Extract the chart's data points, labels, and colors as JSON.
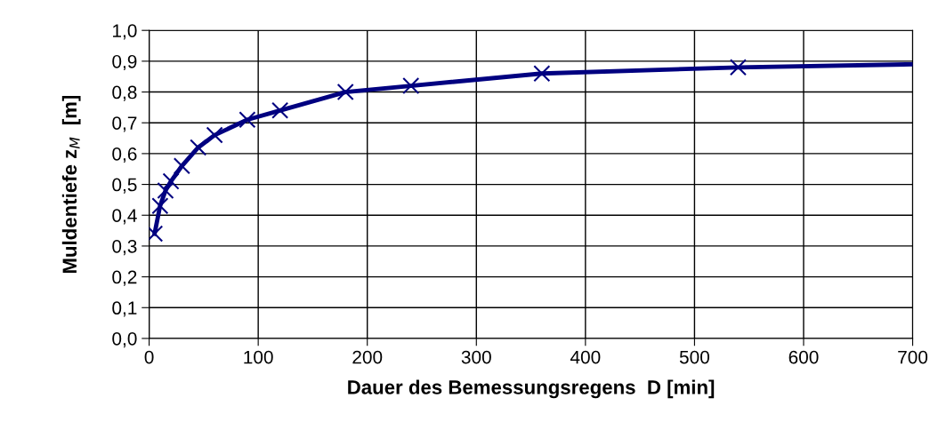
{
  "chart_data": {
    "type": "line",
    "xlabel": "Dauer des Bemessungsregens  D [min]",
    "ylabel": "Muldentiefe z$_{M}$  [m]",
    "xlim": [
      0,
      700
    ],
    "xticks": [
      0,
      100,
      200,
      300,
      400,
      500,
      600,
      700
    ],
    "ylim": [
      0,
      1.0
    ],
    "yticks": [
      {
        "value": 0,
        "label": "0,0"
      },
      {
        "value": 0.1,
        "label": "0,1"
      },
      {
        "value": 0.2,
        "label": "0,2"
      },
      {
        "value": 0.3,
        "label": "0,3"
      },
      {
        "value": 0.4,
        "label": "0,4"
      },
      {
        "value": 0.5,
        "label": "0,5"
      },
      {
        "value": 0.6,
        "label": "0,6"
      },
      {
        "value": 0.7,
        "label": "0,7"
      },
      {
        "value": 0.8,
        "label": "0,8"
      },
      {
        "value": 0.9,
        "label": "0,9"
      },
      {
        "value": 1.0,
        "label": "1,0"
      }
    ],
    "grid": true,
    "legend": false,
    "series": [
      {
        "color": "#000080",
        "marker": "none",
        "x": [
          5,
          10,
          15,
          20,
          30,
          45,
          60,
          90,
          120,
          180,
          240,
          360,
          540,
          700
        ],
        "values": [
          0.34,
          0.43,
          0.48,
          0.51,
          0.56,
          0.62,
          0.66,
          0.71,
          0.74,
          0.8,
          0.82,
          0.86,
          0.88,
          0.89
        ]
      },
      {
        "type": "scatter",
        "color": "#000080",
        "marker": "cross",
        "x": [
          5,
          10,
          15,
          20,
          30,
          45,
          60,
          90,
          120,
          180,
          240,
          360,
          540
        ],
        "values": [
          0.34,
          0.43,
          0.48,
          0.51,
          0.56,
          0.62,
          0.66,
          0.71,
          0.74,
          0.8,
          0.82,
          0.86,
          0.88
        ]
      }
    ]
  }
}
